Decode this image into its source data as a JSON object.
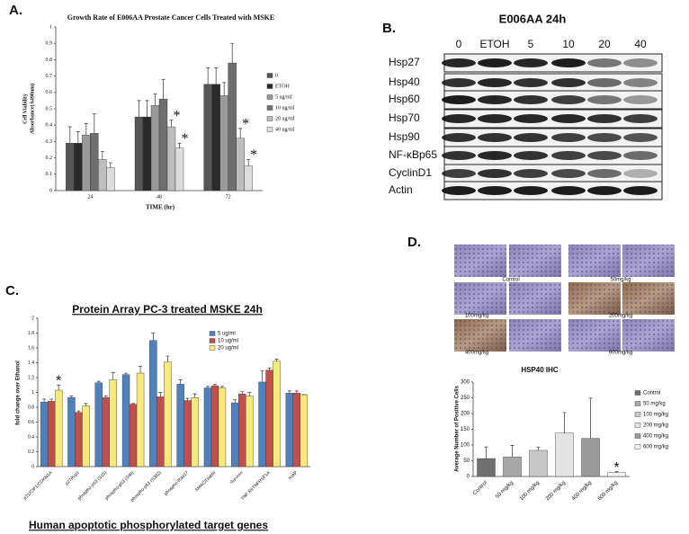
{
  "panel_labels": [
    "A.",
    "B.",
    "C.",
    "D."
  ],
  "chart_data": [
    {
      "type": "bar",
      "title": "Growth Rate of E006AA Prostate Cancer Cells Treated with MSKE",
      "ylabel": [
        "Cell Viability",
        "Absorbance(A490nm)"
      ],
      "xlabel": "TIME (hr)",
      "categories": [
        "24",
        "48",
        "72"
      ],
      "series": [
        {
          "name": "0",
          "color": "#555555",
          "values": [
            0.29,
            0.45,
            0.65
          ],
          "errors": [
            0.1,
            0.1,
            0.1
          ]
        },
        {
          "name": "ETOH",
          "color": "#2a2a2a",
          "values": [
            0.29,
            0.45,
            0.65
          ],
          "errors": [
            0.07,
            0.1,
            0.1
          ]
        },
        {
          "name": "5 ug/ml",
          "color": "#9a9a9a",
          "values": [
            0.34,
            0.52,
            0.58
          ],
          "errors": [
            0.07,
            0.07,
            0.08
          ]
        },
        {
          "name": "10 ug/ml",
          "color": "#6e6e6e",
          "values": [
            0.35,
            0.56,
            0.78
          ],
          "errors": [
            0.12,
            0.12,
            0.12
          ]
        },
        {
          "name": "20 ug/ml",
          "color": "#bdbdbd",
          "values": [
            0.19,
            0.39,
            0.32
          ],
          "errors": [
            0.05,
            0.04,
            0.06
          ]
        },
        {
          "name": "40 ug/ml",
          "color": "#dcdcdc",
          "values": [
            0.14,
            0.26,
            0.15
          ],
          "errors": [
            0.03,
            0.03,
            0.04
          ]
        }
      ],
      "annotations": [
        "*",
        "*",
        "*",
        "*"
      ],
      "ylim": [
        0,
        1
      ],
      "yticks": [
        0,
        0.1,
        0.2,
        0.3,
        0.4,
        0.5,
        0.6,
        0.7,
        0.8,
        0.9,
        1
      ]
    },
    {
      "type": "bar",
      "title": "Protein Array PC-3 treated MSKE 24h",
      "ylabel": [
        "fold change over Ethanol"
      ],
      "xlabel": "Human apoptotic phosphorylated target genes",
      "categories": [
        "p21/CIP1/CDKN1A",
        "p27/Kip1",
        "phospho-p53 (S15)",
        "phospho-p53 (S46)",
        "phospho-p53 (S392)",
        "phospho-Rad17",
        "SMAC/Diablo",
        "Survivin",
        "TNF RI/TNFRSF1A",
        "XIAP"
      ],
      "series": [
        {
          "name": "5 ug/ml",
          "color": "#4f81bd",
          "values": [
            0.87,
            0.93,
            1.13,
            1.24,
            1.7,
            1.11,
            1.06,
            0.86,
            1.14,
            0.99
          ],
          "errors": [
            0.04,
            0.02,
            0.02,
            0.02,
            0.1,
            0.06,
            0.02,
            0.04,
            0.15,
            0.03
          ]
        },
        {
          "name": "10 ug/ml",
          "color": "#c0504d",
          "values": [
            0.88,
            0.73,
            0.93,
            0.84,
            0.94,
            0.89,
            1.09,
            0.98,
            1.3,
            0.99
          ],
          "errors": [
            0.03,
            0.02,
            0.02,
            0.01,
            0.06,
            0.03,
            0.02,
            0.03,
            0.03,
            0.03
          ]
        },
        {
          "name": "20 ug/ml",
          "color": "#f5ea7a",
          "values": [
            1.03,
            0.82,
            1.17,
            1.26,
            1.41,
            0.93,
            1.06,
            0.95,
            1.42,
            0.97
          ],
          "errors": [
            0.07,
            0.03,
            0.1,
            0.09,
            0.08,
            0.05,
            0.02,
            0.05,
            0.03,
            0.0
          ]
        }
      ],
      "annotations": [
        "*"
      ],
      "ylim": [
        0,
        2
      ],
      "yticks": [
        0,
        0.2,
        0.4,
        0.6,
        0.8,
        1,
        1.2,
        1.4,
        1.6,
        1.8,
        2
      ]
    },
    {
      "type": "bar",
      "title": "HSP40 IHC",
      "ylabel": [
        "Average Number of Positive Cells"
      ],
      "categories": [
        "Control",
        "50 mg/kg",
        "100 mg/kg",
        "200 mg/kg",
        "400 mg/kg",
        "600 mg/kg"
      ],
      "values": [
        57,
        62,
        83,
        138,
        121,
        12
      ],
      "errors": [
        37,
        37,
        10,
        65,
        128,
        3
      ],
      "colors": [
        "#707070",
        "#a8a8a8",
        "#c8c8c8",
        "#e4e4e4",
        "#9a9a9a",
        "#f4f4f4"
      ],
      "annotations": [
        "*"
      ],
      "ylim": [
        0,
        300
      ],
      "yticks": [
        0,
        50,
        100,
        150,
        200,
        250,
        300
      ]
    }
  ],
  "blot": {
    "title": "E006AA 24h",
    "lanes": [
      "0",
      "ETOH",
      "5",
      "10",
      "20",
      "40"
    ],
    "proteins": [
      "Hsp27",
      "Hsp40",
      "Hsp60",
      "Hsp70",
      "Hsp90",
      "NF-κBp65",
      "CyclinD1",
      "Actin"
    ]
  },
  "ihc": {
    "labels": [
      "Control",
      "50mg/kg",
      "100mg/kg",
      "200mg/kg",
      "400mg/kg",
      "600mg/kg"
    ]
  }
}
